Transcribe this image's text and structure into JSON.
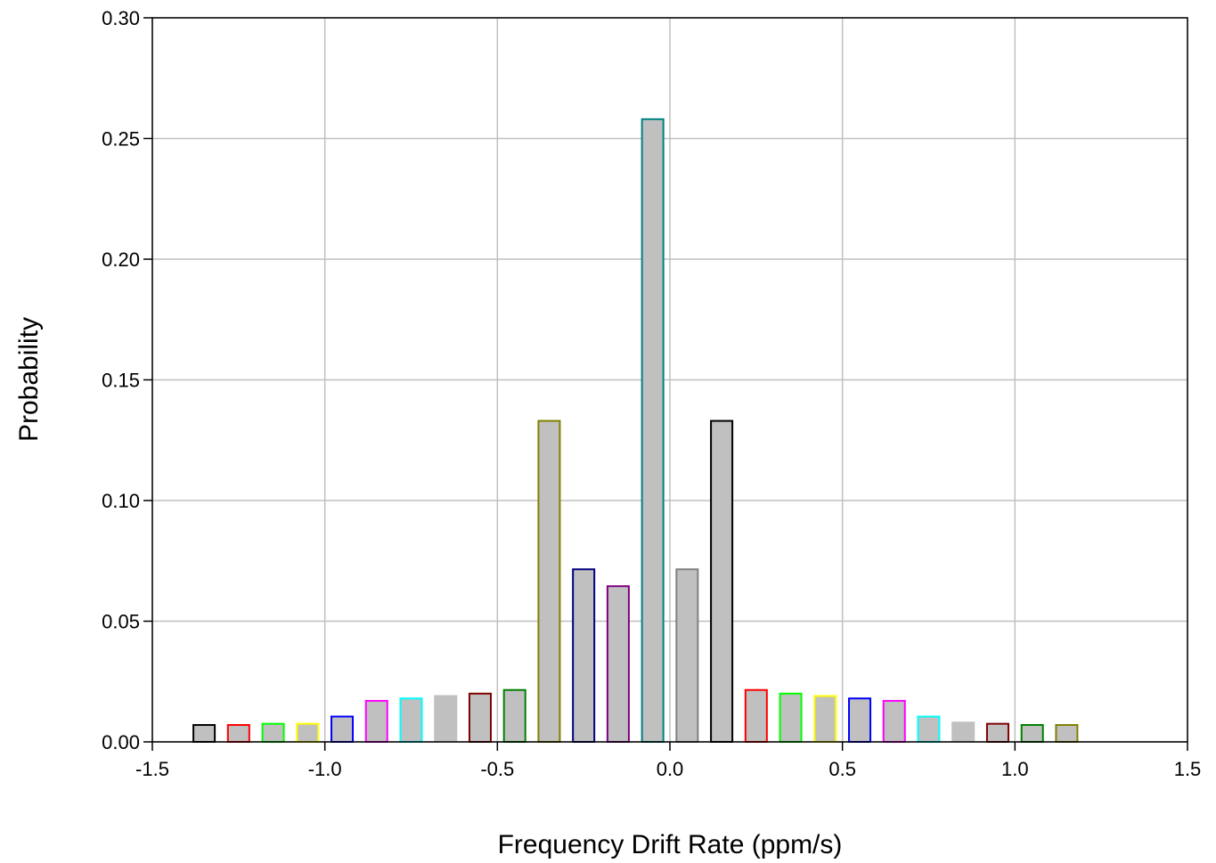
{
  "chart_data": {
    "type": "bar",
    "title": "",
    "xlabel": "Frequency Drift Rate (ppm/s)",
    "ylabel": "Probability",
    "xlim": [
      -1.5,
      1.5
    ],
    "ylim": [
      0,
      0.3
    ],
    "bar_width": 0.062,
    "grid": true,
    "legend": "none",
    "x_ticks": [
      "-1.5",
      "-1.0",
      "-0.5",
      "0.0",
      "0.5",
      "1.0",
      "1.5"
    ],
    "x_tick_values": [
      -1.5,
      -1.0,
      -0.5,
      0.0,
      0.5,
      1.0,
      1.5
    ],
    "y_ticks": [
      "0.00",
      "0.05",
      "0.10",
      "0.15",
      "0.20",
      "0.25",
      "0.30"
    ],
    "y_tick_values": [
      0.0,
      0.05,
      0.1,
      0.15,
      0.2,
      0.25,
      0.3
    ],
    "fill_color": "#c0c0c0",
    "grid_color": "#c0c0c0",
    "bars": [
      {
        "x": -1.35,
        "y": 0.007,
        "color": "#000000"
      },
      {
        "x": -1.25,
        "y": 0.007,
        "color": "#ff0000"
      },
      {
        "x": -1.15,
        "y": 0.0075,
        "color": "#00ff00"
      },
      {
        "x": -1.05,
        "y": 0.0075,
        "color": "#ffff00"
      },
      {
        "x": -0.95,
        "y": 0.0105,
        "color": "#0000ff"
      },
      {
        "x": -0.85,
        "y": 0.017,
        "color": "#ff00ff"
      },
      {
        "x": -0.75,
        "y": 0.018,
        "color": "#00ffff"
      },
      {
        "x": -0.65,
        "y": 0.019,
        "color": "#c0c0c0"
      },
      {
        "x": -0.55,
        "y": 0.02,
        "color": "#800000"
      },
      {
        "x": -0.45,
        "y": 0.0215,
        "color": "#008000"
      },
      {
        "x": -0.35,
        "y": 0.133,
        "color": "#808000"
      },
      {
        "x": -0.25,
        "y": 0.0715,
        "color": "#000080"
      },
      {
        "x": -0.15,
        "y": 0.0645,
        "color": "#800080"
      },
      {
        "x": -0.05,
        "y": 0.258,
        "color": "#008080"
      },
      {
        "x": 0.05,
        "y": 0.0715,
        "color": "#808080"
      },
      {
        "x": 0.15,
        "y": 0.133,
        "color": "#000000"
      },
      {
        "x": 0.25,
        "y": 0.0215,
        "color": "#ff0000"
      },
      {
        "x": 0.35,
        "y": 0.02,
        "color": "#00ff00"
      },
      {
        "x": 0.45,
        "y": 0.019,
        "color": "#ffff00"
      },
      {
        "x": 0.55,
        "y": 0.018,
        "color": "#0000ff"
      },
      {
        "x": 0.65,
        "y": 0.017,
        "color": "#ff00ff"
      },
      {
        "x": 0.75,
        "y": 0.0105,
        "color": "#00ffff"
      },
      {
        "x": 0.85,
        "y": 0.008,
        "color": "#c0c0c0"
      },
      {
        "x": 0.95,
        "y": 0.0075,
        "color": "#800000"
      },
      {
        "x": 1.05,
        "y": 0.007,
        "color": "#008000"
      },
      {
        "x": 1.15,
        "y": 0.007,
        "color": "#808000"
      }
    ]
  }
}
